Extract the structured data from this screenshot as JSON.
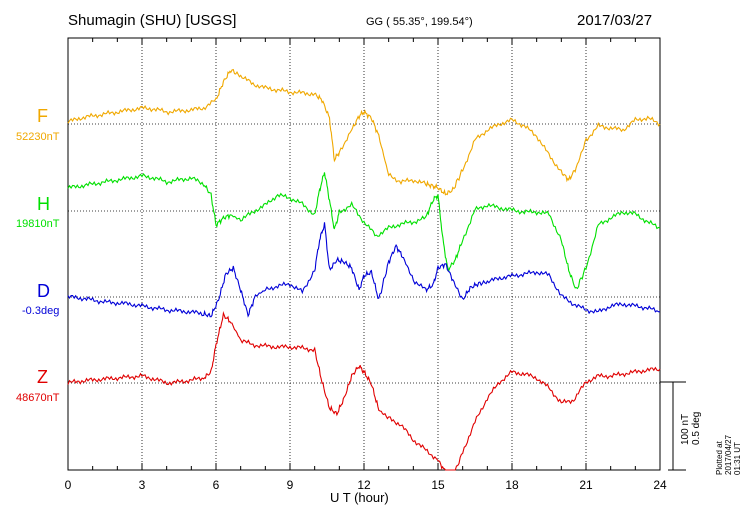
{
  "header": {
    "station": "Shumagin (SHU)  [USGS]",
    "coords": "GG ( 55.35°, 199.54°)",
    "date": "2017/03/27"
  },
  "components": [
    {
      "letter": "F",
      "base": "52230nT",
      "color": "#f0a800"
    },
    {
      "letter": "H",
      "base": "19810nT",
      "color": "#00e000"
    },
    {
      "letter": "D",
      "base": "-0.3deg",
      "color": "#0000d8"
    },
    {
      "letter": "Z",
      "base": "48670nT",
      "color": "#e00000"
    }
  ],
  "scale": {
    "nt": "100 nT",
    "deg": "0.5 deg"
  },
  "plotted": "Plotted at 2017/04/27 01:31  UT",
  "chart_data": {
    "type": "line",
    "xlabel": "U T (hour)",
    "xlim": [
      0,
      24
    ],
    "xticks": [
      0,
      3,
      6,
      9,
      12,
      15,
      18,
      21,
      24
    ],
    "tick_labels": [
      "0",
      "3",
      "6",
      "9",
      "12",
      "15",
      "18",
      "21",
      "24"
    ],
    "grid": true,
    "series": [
      {
        "name": "F",
        "color": "#f0a800",
        "x": [
          0,
          0.5,
          1,
          1.5,
          2,
          2.5,
          3,
          3.5,
          4,
          4.5,
          5,
          5.5,
          6,
          6.3,
          6.6,
          7,
          7.5,
          8,
          8.5,
          9,
          9.5,
          10,
          10.3,
          10.6,
          10.8,
          11,
          11.5,
          11.8,
          12,
          12.3,
          12.6,
          13,
          13.5,
          14,
          14.5,
          14.8,
          15,
          15.3,
          15.6,
          16,
          16.5,
          17,
          17.5,
          18,
          18.5,
          19,
          19.5,
          20,
          20.3,
          20.6,
          21,
          21.5,
          22,
          22.5,
          23,
          23.5,
          24
        ],
        "y": [
          122,
          118,
          116,
          114,
          112,
          110,
          108,
          109,
          112,
          111,
          110,
          108,
          100,
          82,
          70,
          76,
          84,
          88,
          90,
          92,
          93,
          94,
          100,
          118,
          160,
          152,
          130,
          116,
          112,
          118,
          136,
          175,
          182,
          180,
          184,
          186,
          188,
          194,
          190,
          170,
          140,
          130,
          124,
          120,
          126,
          136,
          155,
          172,
          180,
          168,
          140,
          126,
          128,
          130,
          120,
          118,
          124
        ]
      },
      {
        "name": "H",
        "color": "#00e000",
        "x": [
          0,
          0.5,
          1,
          1.5,
          2,
          2.5,
          3,
          3.5,
          4,
          4.5,
          5,
          5.5,
          5.8,
          6,
          6.3,
          6.6,
          7,
          7.5,
          8,
          8.5,
          9,
          9.5,
          10,
          10.2,
          10.4,
          10.6,
          10.8,
          11,
          11.5,
          12,
          12.5,
          13,
          13.5,
          14,
          14.5,
          14.8,
          15,
          15.2,
          15.4,
          15.7,
          16,
          16.5,
          17,
          17.5,
          18,
          18.5,
          19,
          19.5,
          20,
          20.3,
          20.6,
          21,
          21.5,
          22,
          22.5,
          23,
          23.5,
          24
        ],
        "y": [
          188,
          186,
          184,
          182,
          180,
          178,
          176,
          178,
          182,
          180,
          178,
          184,
          195,
          225,
          218,
          215,
          220,
          212,
          205,
          195,
          198,
          204,
          215,
          190,
          172,
          200,
          230,
          212,
          205,
          222,
          236,
          228,
          224,
          222,
          218,
          200,
          195,
          240,
          270,
          260,
          240,
          210,
          205,
          208,
          210,
          212,
          212,
          214,
          240,
          270,
          290,
          268,
          225,
          218,
          212,
          214,
          222,
          228
        ]
      },
      {
        "name": "D",
        "color": "#0000d8",
        "x": [
          0,
          0.5,
          1,
          1.5,
          2,
          2.5,
          3,
          3.5,
          4,
          4.5,
          5,
          5.5,
          5.8,
          6.1,
          6.4,
          6.7,
          7,
          7.3,
          7.6,
          8,
          8.5,
          9,
          9.5,
          10,
          10.2,
          10.4,
          10.6,
          10.9,
          11.2,
          11.5,
          11.8,
          12,
          12.3,
          12.6,
          13,
          13.3,
          13.6,
          14,
          14.5,
          14.8,
          15,
          15.3,
          15.6,
          16,
          16.3,
          16.6,
          17,
          17.5,
          18,
          18.5,
          19,
          19.5,
          20,
          20.5,
          21,
          21.5,
          22,
          22.5,
          23,
          23.5,
          24
        ],
        "y": [
          297,
          298,
          300,
          302,
          303,
          304,
          306,
          308,
          310,
          311,
          312,
          314,
          316,
          300,
          274,
          268,
          290,
          315,
          296,
          290,
          286,
          284,
          292,
          270,
          240,
          224,
          270,
          260,
          262,
          268,
          290,
          276,
          272,
          300,
          262,
          246,
          258,
          280,
          290,
          285,
          268,
          264,
          280,
          300,
          288,
          284,
          282,
          278,
          276,
          274,
          272,
          275,
          296,
          304,
          310,
          312,
          306,
          304,
          306,
          308,
          312
        ]
      },
      {
        "name": "Z",
        "color": "#e00000",
        "x": [
          0,
          0.5,
          1,
          1.5,
          2,
          2.5,
          3,
          3.5,
          4,
          4.5,
          5,
          5.5,
          5.8,
          6,
          6.3,
          6.6,
          7,
          7.5,
          8,
          8.5,
          9,
          9.5,
          10,
          10.3,
          10.6,
          10.9,
          11.2,
          11.5,
          11.8,
          12,
          12.3,
          12.6,
          13,
          13.5,
          14,
          14.5,
          15,
          15.3,
          15.6,
          16,
          16.5,
          17,
          17.5,
          18,
          18.5,
          19,
          19.5,
          20,
          20.5,
          21,
          21.5,
          22,
          22.5,
          23,
          23.5,
          24
        ],
        "y": [
          383,
          381,
          380,
          379,
          378,
          377,
          376,
          379,
          383,
          382,
          380,
          378,
          372,
          345,
          315,
          322,
          340,
          345,
          346,
          347,
          347,
          348,
          350,
          382,
          408,
          414,
          398,
          376,
          366,
          372,
          384,
          410,
          418,
          425,
          440,
          450,
          460,
          472,
          478,
          452,
          422,
          398,
          382,
          372,
          374,
          378,
          388,
          403,
          400,
          382,
          376,
          376,
          374,
          372,
          370,
          369
        ]
      }
    ]
  }
}
